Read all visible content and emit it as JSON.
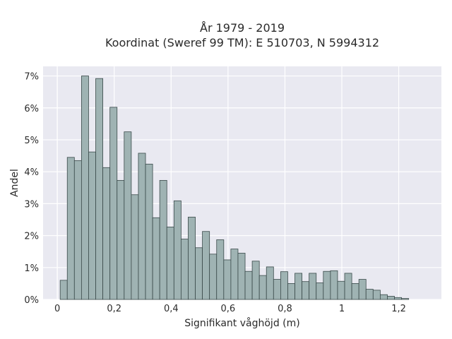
{
  "chart_data": {
    "type": "bar",
    "title_line1": "År 1979 - 2019",
    "title_line2": "Koordinat (Sweref 99 TM): E 510703, N 5994312",
    "xlabel": "Signifikant våghöjd (m)",
    "ylabel": "Andel",
    "xlim": [
      -0.05,
      1.35
    ],
    "ylim": [
      0,
      7.3
    ],
    "bin_start": 0.01,
    "bin_width": 0.025,
    "values": [
      0.6,
      4.45,
      4.35,
      7.0,
      4.62,
      6.92,
      4.13,
      6.02,
      3.73,
      5.25,
      3.28,
      4.58,
      4.24,
      2.56,
      3.73,
      2.27,
      3.09,
      1.89,
      2.58,
      1.62,
      2.13,
      1.42,
      1.87,
      1.24,
      1.58,
      1.45,
      0.88,
      1.2,
      0.75,
      1.02,
      0.63,
      0.87,
      0.5,
      0.82,
      0.56,
      0.82,
      0.52,
      0.88,
      0.9,
      0.57,
      0.82,
      0.5,
      0.63,
      0.32,
      0.29,
      0.15,
      0.1,
      0.06,
      0.03
    ],
    "xticks": [
      0,
      0.2,
      0.4,
      0.6,
      0.8,
      1.0,
      1.2
    ],
    "xtick_labels": [
      "0",
      "0,2",
      "0,4",
      "0,6",
      "0,8",
      "1",
      "1,2"
    ],
    "yticks": [
      0,
      1,
      2,
      3,
      4,
      5,
      6,
      7
    ],
    "ytick_labels": [
      "0%",
      "1%",
      "2%",
      "3%",
      "4%",
      "5%",
      "6%",
      "7%"
    ],
    "grid": true,
    "bar_color": "#9fb3b3",
    "bar_edge_color": "#3a4a4a",
    "plot_background": "#e9e9f1",
    "grid_color": "#ffffff"
  }
}
